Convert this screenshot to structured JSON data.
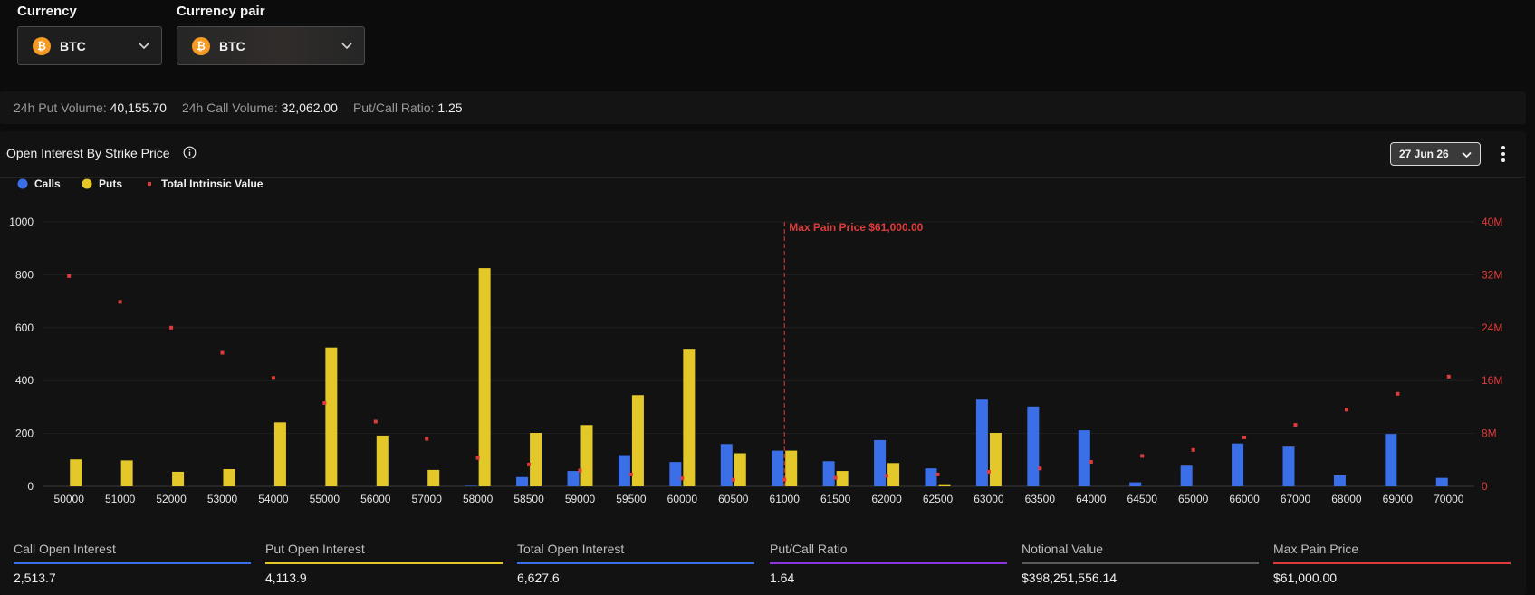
{
  "selectors": {
    "currency": {
      "label": "Currency",
      "value": "BTC",
      "coin_symbol": "₿"
    },
    "pair": {
      "label": "Currency pair",
      "value": "BTC",
      "coin_symbol": "₿"
    }
  },
  "stats": [
    {
      "key": "24h Put Volume:",
      "value": "40,155.70"
    },
    {
      "key": "24h Call Volume:",
      "value": "32,062.00"
    },
    {
      "key": "Put/Call Ratio:",
      "value": "1.25"
    }
  ],
  "panel": {
    "title": "Open Interest By Strike Price",
    "date": "27 Jun 26"
  },
  "colors": {
    "calls": "#3b6fe8",
    "puts": "#e4c829",
    "intrinsic": "#e03b3b"
  },
  "chart_data": {
    "type": "bar",
    "legend": [
      "Calls",
      "Puts",
      "Total Intrinsic Value"
    ],
    "legend_position": "top-left",
    "categories": [
      "50000",
      "51000",
      "52000",
      "53000",
      "54000",
      "55000",
      "56000",
      "57000",
      "58000",
      "58500",
      "59000",
      "59500",
      "60000",
      "60500",
      "61000",
      "61500",
      "62000",
      "62500",
      "63000",
      "63500",
      "64000",
      "64500",
      "65000",
      "66000",
      "67000",
      "68000",
      "69000",
      "70000"
    ],
    "series": [
      {
        "name": "Calls",
        "axis": "left",
        "values": [
          0,
          0,
          0,
          0,
          0,
          0,
          0,
          0,
          2,
          35,
          58,
          118,
          92,
          160,
          135,
          95,
          175,
          68,
          328,
          302,
          212,
          15,
          78,
          162,
          150,
          42,
          198,
          32
        ]
      },
      {
        "name": "Puts",
        "axis": "left",
        "values": [
          102,
          98,
          55,
          65,
          242,
          525,
          192,
          62,
          825,
          202,
          232,
          345,
          520,
          125,
          135,
          58,
          88,
          8,
          202,
          0,
          0,
          0,
          0,
          0,
          0,
          0,
          0,
          0
        ]
      },
      {
        "name": "Total Intrinsic Value",
        "axis": "right",
        "type": "point",
        "values": [
          31800000,
          27900000,
          24000000,
          20200000,
          16400000,
          12600000,
          9800000,
          7200000,
          4300000,
          3300000,
          2400000,
          1800000,
          1200000,
          1000000,
          1000000,
          1300000,
          1600000,
          1800000,
          2200000,
          2700000,
          3700000,
          4600000,
          5500000,
          7400000,
          9300000,
          11600000,
          14000000,
          16600000
        ]
      }
    ],
    "yticks_left": [
      "1000",
      "800",
      "600",
      "400",
      "200",
      "0"
    ],
    "yticks_right": [
      "40M",
      "32M",
      "24M",
      "16M",
      "8M",
      "0"
    ],
    "ylim_left": [
      0,
      1000
    ],
    "ylim_right": [
      0,
      40000000
    ],
    "marker": {
      "label": "Max Pain Price $61,000.00",
      "category": "61000"
    },
    "grid": true
  },
  "metrics": [
    {
      "label": "Call Open Interest",
      "value": "2,513.7",
      "color": "#3b6fe8"
    },
    {
      "label": "Put Open Interest",
      "value": "4,113.9",
      "color": "#e4c829"
    },
    {
      "label": "Total Open Interest",
      "value": "6,627.6",
      "color": "#3b6fe8"
    },
    {
      "label": "Put/Call Ratio",
      "value": "1.64",
      "color": "#8a35e0"
    },
    {
      "label": "Notional Value",
      "value": "$398,251,556.14",
      "color": "#5a5a5a"
    },
    {
      "label": "Max Pain Price",
      "value": "$61,000.00",
      "color": "#e03b3b"
    }
  ]
}
